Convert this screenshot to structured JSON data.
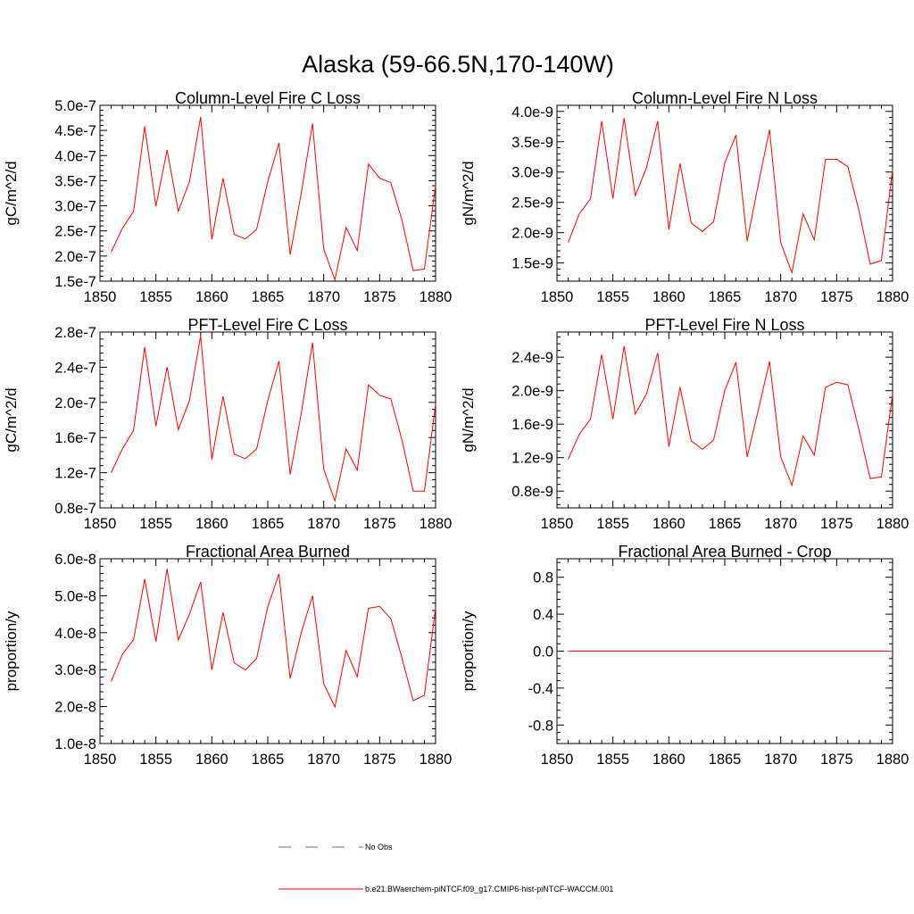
{
  "figure_title": "Alaska (59-66.5N,170-140W)",
  "colors": {
    "model": "#ff0000",
    "obs": "#5a6ec8",
    "frame": "#000000"
  },
  "legend": [
    {
      "label": "No Obs",
      "style": "dashed",
      "color": "#5a6ec8"
    },
    {
      "label": "b.e21.BWaerchem-piNTCF.f09_g17.CMIP6-hist-piNTCF-WACCM.001",
      "style": "solid",
      "color": "#ff0000"
    }
  ],
  "chart_data": [
    {
      "type": "line",
      "title": "Column-Level Fire C Loss",
      "ylabel": "gC/m^2/d",
      "xlim": [
        1850,
        1880
      ],
      "ylim": [
        1.5e-07,
        5e-07
      ],
      "xticks": [
        1850,
        1855,
        1860,
        1865,
        1870,
        1875,
        1880
      ],
      "yticks": [
        1.5e-07,
        2e-07,
        2.5e-07,
        3e-07,
        3.5e-07,
        4e-07,
        4.5e-07,
        5e-07
      ],
      "ytick_labels": [
        "1.5e-7",
        "2.0e-7",
        "2.5e-7",
        "3.0e-7",
        "3.5e-7",
        "4.0e-7",
        "4.5e-7",
        "5.0e-7"
      ],
      "x": [
        1851,
        1852,
        1853,
        1854,
        1855,
        1856,
        1857,
        1858,
        1859,
        1860,
        1861,
        1862,
        1863,
        1864,
        1865,
        1866,
        1867,
        1868,
        1869,
        1870,
        1871,
        1872,
        1873,
        1874,
        1875,
        1876,
        1877,
        1878,
        1879,
        1880
      ],
      "series": [
        {
          "values": [
            2.08e-07,
            2.55e-07,
            2.89e-07,
            4.58e-07,
            2.99e-07,
            4.11e-07,
            2.89e-07,
            3.48e-07,
            4.77e-07,
            2.33e-07,
            3.55e-07,
            2.43e-07,
            2.34e-07,
            2.53e-07,
            3.48e-07,
            4.25e-07,
            2.03e-07,
            3.26e-07,
            4.64e-07,
            2.14e-07,
            1.53e-07,
            2.57e-07,
            2.11e-07,
            3.83e-07,
            3.55e-07,
            3.46e-07,
            2.71e-07,
            1.71e-07,
            1.74e-07,
            3.41e-07
          ]
        }
      ]
    },
    {
      "type": "line",
      "title": "Column-Level Fire N Loss",
      "ylabel": "gN/m^2/d",
      "xlim": [
        1850,
        1880
      ],
      "ylim": [
        1.2e-09,
        4.1e-09
      ],
      "xticks": [
        1850,
        1855,
        1860,
        1865,
        1870,
        1875,
        1880
      ],
      "yticks": [
        1.5e-09,
        2e-09,
        2.5e-09,
        3e-09,
        3.5e-09,
        4e-09
      ],
      "ytick_labels": [
        "1.5e-9",
        "2.0e-9",
        "2.5e-9",
        "3.0e-9",
        "3.5e-9",
        "4.0e-9"
      ],
      "x": [
        1851,
        1852,
        1853,
        1854,
        1855,
        1856,
        1857,
        1858,
        1859,
        1860,
        1861,
        1862,
        1863,
        1864,
        1865,
        1866,
        1867,
        1868,
        1869,
        1870,
        1871,
        1872,
        1873,
        1874,
        1875,
        1876,
        1877,
        1878,
        1879,
        1880
      ],
      "series": [
        {
          "values": [
            1.84e-09,
            2.31e-09,
            2.56e-09,
            3.84e-09,
            2.56e-09,
            3.89e-09,
            2.61e-09,
            3.07e-09,
            3.84e-09,
            2.05e-09,
            3.14e-09,
            2.16e-09,
            2.02e-09,
            2.18e-09,
            3.15e-09,
            3.61e-09,
            1.86e-09,
            2.8e-09,
            3.7e-09,
            1.84e-09,
            1.34e-09,
            2.31e-09,
            1.88e-09,
            3.21e-09,
            3.21e-09,
            3.09e-09,
            2.36e-09,
            1.48e-09,
            1.54e-09,
            3.04e-09
          ]
        }
      ]
    },
    {
      "type": "line",
      "title": "PFT-Level Fire C Loss",
      "ylabel": "gC/m^2/d",
      "xlim": [
        1850,
        1880
      ],
      "ylim": [
        8e-08,
        2.8e-07
      ],
      "xticks": [
        1850,
        1855,
        1860,
        1865,
        1870,
        1875,
        1880
      ],
      "yticks": [
        8e-08,
        1.2e-07,
        1.6e-07,
        2e-07,
        2.4e-07,
        2.8e-07
      ],
      "ytick_labels": [
        "0.8e-7",
        "1.2e-7",
        "1.6e-7",
        "2.0e-7",
        "2.4e-7",
        "2.8e-7"
      ],
      "x": [
        1851,
        1852,
        1853,
        1854,
        1855,
        1856,
        1857,
        1858,
        1859,
        1860,
        1861,
        1862,
        1863,
        1864,
        1865,
        1866,
        1867,
        1868,
        1869,
        1870,
        1871,
        1872,
        1873,
        1874,
        1875,
        1876,
        1877,
        1878,
        1879,
        1880
      ],
      "series": [
        {
          "values": [
            1.2e-07,
            1.47e-07,
            1.68e-07,
            2.63e-07,
            1.73e-07,
            2.4e-07,
            1.69e-07,
            2.02e-07,
            2.76e-07,
            1.35e-07,
            2.07e-07,
            1.41e-07,
            1.36e-07,
            1.47e-07,
            2.02e-07,
            2.47e-07,
            1.18e-07,
            1.88e-07,
            2.68e-07,
            1.24e-07,
            8.8e-08,
            1.47e-07,
            1.23e-07,
            2.2e-07,
            2.08e-07,
            2.04e-07,
            1.57e-07,
            9.9e-08,
            9.9e-08,
            1.98e-07
          ]
        }
      ]
    },
    {
      "type": "line",
      "title": "PFT-Level Fire N Loss",
      "ylabel": "gN/m^2/d",
      "xlim": [
        1850,
        1880
      ],
      "ylim": [
        6e-10,
        2.7e-09
      ],
      "xticks": [
        1850,
        1855,
        1860,
        1865,
        1870,
        1875,
        1880
      ],
      "yticks": [
        8e-10,
        1.2e-09,
        1.6e-09,
        2e-09,
        2.4e-09
      ],
      "ytick_labels": [
        "0.8e-9",
        "1.2e-9",
        "1.6e-9",
        "2.0e-9",
        "2.4e-9"
      ],
      "x": [
        1851,
        1852,
        1853,
        1854,
        1855,
        1856,
        1857,
        1858,
        1859,
        1860,
        1861,
        1862,
        1863,
        1864,
        1865,
        1866,
        1867,
        1868,
        1869,
        1870,
        1871,
        1872,
        1873,
        1874,
        1875,
        1876,
        1877,
        1878,
        1879,
        1880
      ],
      "series": [
        {
          "values": [
            1.18e-09,
            1.48e-09,
            1.66e-09,
            2.43e-09,
            1.66e-09,
            2.53e-09,
            1.72e-09,
            1.96e-09,
            2.45e-09,
            1.33e-09,
            2.04e-09,
            1.4e-09,
            1.3e-09,
            1.41e-09,
            2e-09,
            2.34e-09,
            1.21e-09,
            1.77e-09,
            2.35e-09,
            1.21e-09,
            8.7e-10,
            1.46e-09,
            1.23e-09,
            2.04e-09,
            2.1e-09,
            2.07e-09,
            1.53e-09,
            9.5e-10,
            9.7e-10,
            1.96e-09
          ]
        }
      ]
    },
    {
      "type": "line",
      "title": "Fractional Area Burned",
      "ylabel": "proportion/y",
      "xlim": [
        1850,
        1880
      ],
      "ylim": [
        1e-08,
        6e-08
      ],
      "xticks": [
        1850,
        1855,
        1860,
        1865,
        1870,
        1875,
        1880
      ],
      "yticks": [
        1e-08,
        2e-08,
        3e-08,
        4e-08,
        5e-08,
        6e-08
      ],
      "ytick_labels": [
        "1.0e-8",
        "2.0e-8",
        "3.0e-8",
        "4.0e-8",
        "5.0e-8",
        "6.0e-8"
      ],
      "x": [
        1851,
        1852,
        1853,
        1854,
        1855,
        1856,
        1857,
        1858,
        1859,
        1860,
        1861,
        1862,
        1863,
        1864,
        1865,
        1866,
        1867,
        1868,
        1869,
        1870,
        1871,
        1872,
        1873,
        1874,
        1875,
        1876,
        1877,
        1878,
        1879,
        1880
      ],
      "series": [
        {
          "values": [
            2.68e-08,
            3.41e-08,
            3.81e-08,
            5.45e-08,
            3.76e-08,
            5.73e-08,
            3.8e-08,
            4.5e-08,
            5.37e-08,
            2.99e-08,
            4.55e-08,
            3.18e-08,
            2.99e-08,
            3.3e-08,
            4.7e-08,
            5.59e-08,
            2.76e-08,
            4.01e-08,
            5e-08,
            2.62e-08,
            1.99e-08,
            3.52e-08,
            2.81e-08,
            4.66e-08,
            4.71e-08,
            4.38e-08,
            3.31e-08,
            2.16e-08,
            2.31e-08,
            4.68e-08
          ]
        }
      ]
    },
    {
      "type": "line",
      "title": "Fractional Area Burned - Crop",
      "ylabel": "proportion/y",
      "xlim": [
        1850,
        1880
      ],
      "ylim": [
        -1.0,
        1.0
      ],
      "xticks": [
        1850,
        1855,
        1860,
        1865,
        1870,
        1875,
        1880
      ],
      "yticks": [
        -0.8,
        -0.4,
        0.0,
        0.4,
        0.8
      ],
      "ytick_labels": [
        "-0.8",
        "-0.4",
        "0.0",
        "0.4",
        "0.8"
      ],
      "x": [
        1851,
        1852,
        1853,
        1854,
        1855,
        1856,
        1857,
        1858,
        1859,
        1860,
        1861,
        1862,
        1863,
        1864,
        1865,
        1866,
        1867,
        1868,
        1869,
        1870,
        1871,
        1872,
        1873,
        1874,
        1875,
        1876,
        1877,
        1878,
        1879,
        1880
      ],
      "series": [
        {
          "values": [
            0,
            0,
            0,
            0,
            0,
            0,
            0,
            0,
            0,
            0,
            0,
            0,
            0,
            0,
            0,
            0,
            0,
            0,
            0,
            0,
            0,
            0,
            0,
            0,
            0,
            0,
            0,
            0,
            0,
            0
          ]
        }
      ]
    }
  ]
}
